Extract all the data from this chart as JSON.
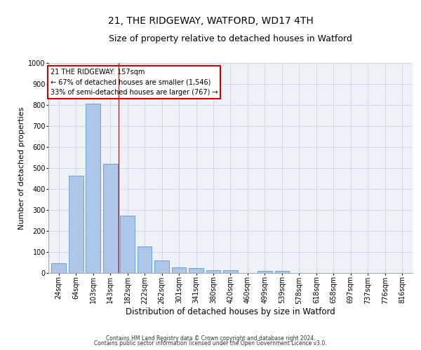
{
  "title1": "21, THE RIDGEWAY, WATFORD, WD17 4TH",
  "title2": "Size of property relative to detached houses in Watford",
  "xlabel": "Distribution of detached houses by size in Watford",
  "ylabel": "Number of detached properties",
  "categories": [
    "24sqm",
    "64sqm",
    "103sqm",
    "143sqm",
    "182sqm",
    "222sqm",
    "262sqm",
    "301sqm",
    "341sqm",
    "380sqm",
    "420sqm",
    "460sqm",
    "499sqm",
    "539sqm",
    "578sqm",
    "618sqm",
    "658sqm",
    "697sqm",
    "737sqm",
    "776sqm",
    "816sqm"
  ],
  "values": [
    46,
    462,
    808,
    520,
    275,
    127,
    60,
    27,
    22,
    13,
    15,
    0,
    10,
    9,
    0,
    0,
    0,
    0,
    0,
    0,
    0
  ],
  "bar_color": "#aec6e8",
  "bar_edge_color": "#5b9bd5",
  "red_line_x": 3.5,
  "annotation_lines": [
    "21 THE RIDGEWAY: 157sqm",
    "← 67% of detached houses are smaller (1,546)",
    "33% of semi-detached houses are larger (767) →"
  ],
  "annotation_box_color": "#ffffff",
  "annotation_box_edge": "#cc0000",
  "grid_color": "#d0d8e8",
  "background_color": "#eef2f8",
  "footer1": "Contains HM Land Registry data © Crown copyright and database right 2024.",
  "footer2": "Contains public sector information licensed under the Open Government Licence v3.0.",
  "ylim": [
    0,
    1000
  ],
  "title1_fontsize": 10,
  "title2_fontsize": 9,
  "xlabel_fontsize": 8.5,
  "ylabel_fontsize": 8,
  "tick_fontsize": 7,
  "annotation_fontsize": 7,
  "footer_fontsize": 5.5
}
